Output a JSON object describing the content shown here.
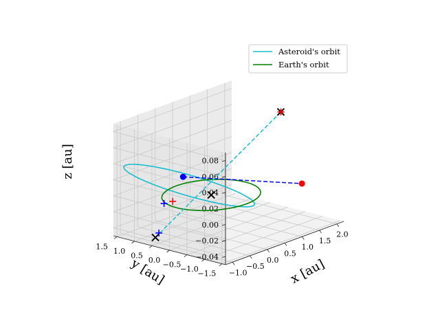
{
  "chart_data": {
    "type": "line3d",
    "title": "",
    "axes": {
      "x": {
        "label": "x [au]",
        "range": [
          -1.2,
          2.2
        ],
        "ticks": [
          -1.0,
          -0.5,
          0.0,
          0.5,
          1.0,
          1.5,
          2.0
        ],
        "tick_labels": [
          "−1.0",
          "−0.5",
          "0.0",
          "0.5",
          "1.0",
          "1.5",
          "2.0"
        ]
      },
      "y": {
        "label": "y [au]",
        "range": [
          -1.6,
          1.6
        ],
        "ticks": [
          -1.5,
          -1.0,
          -0.5,
          0.0,
          0.5,
          1.0,
          1.5
        ],
        "tick_labels": [
          "−1.5",
          "−1.0",
          "−0.5",
          "0.0",
          "0.5",
          "1.0",
          "1.5"
        ]
      },
      "z": {
        "label": "z [au]",
        "range": [
          -0.05,
          0.09
        ],
        "ticks": [
          -0.04,
          -0.02,
          0.0,
          0.02,
          0.04,
          0.06,
          0.08
        ],
        "tick_labels": [
          "−0.04",
          "−0.02",
          "0.00",
          "0.02",
          "0.04",
          "0.06",
          "0.08"
        ]
      }
    },
    "grid": true,
    "legend": {
      "placement": "top-right",
      "entries": [
        "Asteroid's orbit",
        "Earth's orbit"
      ]
    },
    "series": [
      {
        "name": "Asteroid's orbit",
        "color": "#17becf",
        "orbit": {
          "a": 1.4,
          "e": 0.45,
          "inclination_deg": 3.5,
          "node_deg": 70,
          "perihelion_arg_deg": 200
        }
      },
      {
        "name": "Earth's orbit",
        "color": "#008000",
        "orbit": {
          "a": 1.0,
          "e": 0.0
        }
      }
    ],
    "points": [
      {
        "x": 0.0,
        "y": 0.0,
        "z": 0.0,
        "marker": "x",
        "color": "#000000"
      },
      {
        "x": 1.7,
        "y": -0.3,
        "z": 0.08,
        "marker": "x",
        "color": "#000000"
      },
      {
        "x": 1.7,
        "y": -0.3,
        "z": 0.08,
        "marker": "+",
        "color": "#ff0000"
      },
      {
        "x": -1.0,
        "y": 0.6,
        "z": -0.044,
        "marker": "x",
        "color": "#000000"
      },
      {
        "x": -0.9,
        "y": 0.6,
        "z": -0.04,
        "marker": "+",
        "color": "#0000ff"
      },
      {
        "x": -0.4,
        "y": 0.95,
        "z": -0.015,
        "marker": "+",
        "color": "#0000ff"
      },
      {
        "x": -0.2,
        "y": 0.9,
        "z": -0.015,
        "marker": "+",
        "color": "#ff0000"
      },
      {
        "x": 0.5,
        "y": 1.3,
        "z": 0.0,
        "marker": "o",
        "color": "#0000ff"
      },
      {
        "x": 1.6,
        "y": -1.0,
        "z": 0.0,
        "marker": "o",
        "color": "#ff0000"
      }
    ],
    "dashed_lines": [
      {
        "from": [
          0.5,
          1.3,
          0.0
        ],
        "to": [
          1.6,
          -1.0,
          0.0
        ],
        "color": "#0000ff"
      },
      {
        "from": [
          -1.0,
          0.6,
          -0.044
        ],
        "to": [
          1.7,
          -0.3,
          0.08
        ],
        "color": "#17becf"
      }
    ]
  }
}
